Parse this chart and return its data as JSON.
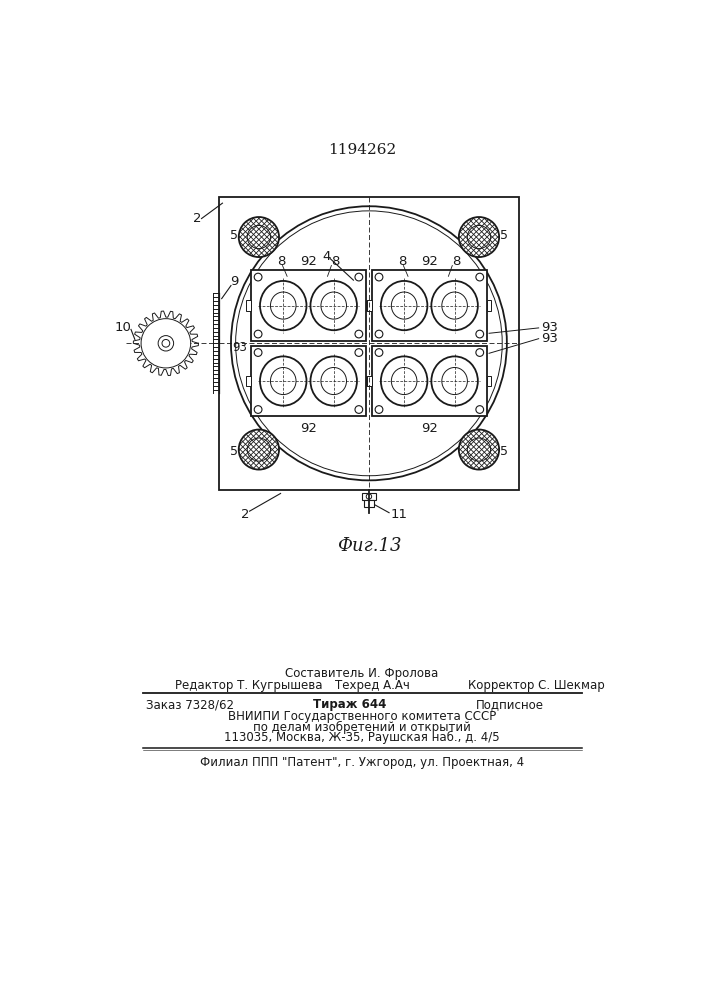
{
  "title_number": "1194262",
  "fig_label": "Фиг.13",
  "bg_color": "#ffffff",
  "line_color": "#1a1a1a",
  "footer_line1_center": "Составитель И. Фролова",
  "footer_col1": "Редактор Т. Кугрышева",
  "footer_col2": "Техред А.Ач",
  "footer_col3": "Корректор С. Шекмар",
  "footer_order": "Заказ 7328/62",
  "footer_tirazh": "Тираж 644",
  "footer_podp": "Подписное",
  "footer_vniip1": "ВНИИПИ Государственного комитета СССР",
  "footer_vniip2": "по делам изобретений и открытий",
  "footer_addr": "113035, Москва, Ж-35, Раушская наб., д. 4/5",
  "footer_filial": "Филиал ППП \"Патент\", г. Ужгород, ул. Проектная, 4"
}
